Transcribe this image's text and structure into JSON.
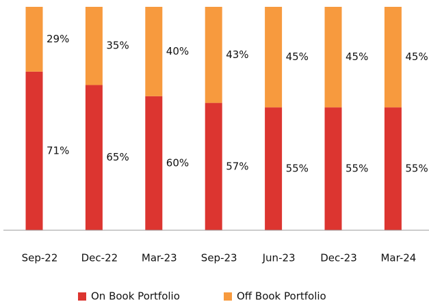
{
  "chart_data": {
    "type": "stacked_bar",
    "categories": [
      "Sep-22",
      "Dec-22",
      "Mar-23",
      "Sep-23",
      "Jun-23",
      "Dec-23",
      "Mar-24"
    ],
    "series": [
      {
        "name": "On Book Portfolio",
        "color": "#dc3530",
        "values": [
          71,
          65,
          60,
          57,
          55,
          55,
          55
        ],
        "value_labels": [
          "71%",
          "65%",
          "60%",
          "57%",
          "55%",
          "55%",
          "55%"
        ]
      },
      {
        "name": "Off Book Portfolio",
        "color": "#f79a3e",
        "values": [
          29,
          35,
          40,
          43,
          45,
          45,
          45
        ],
        "value_labels": [
          "29%",
          "35%",
          "40%",
          "43%",
          "45%",
          "45%",
          "45%"
        ]
      }
    ],
    "ylim": [
      0,
      100
    ]
  }
}
